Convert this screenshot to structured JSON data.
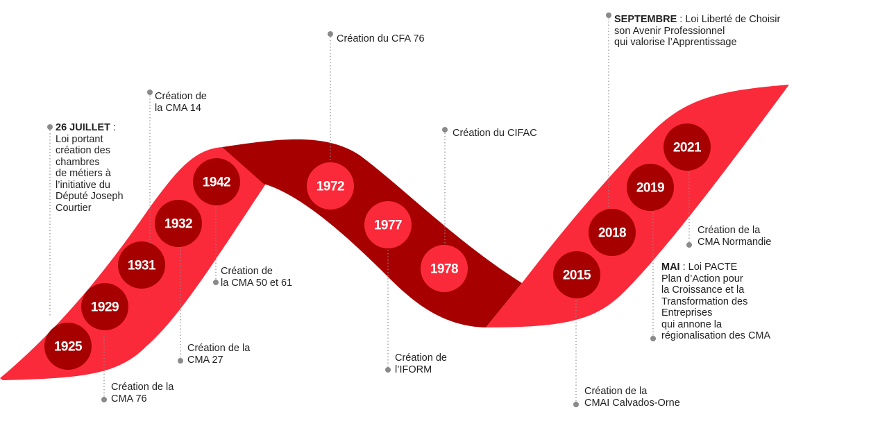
{
  "colors": {
    "band_light": "#fb2a3a",
    "band_dark": "#a60000",
    "circle_on_light": "#a60000",
    "circle_on_dark": "#fb2a3a",
    "connector": "#8a8a8a",
    "text": "#222222"
  },
  "milestones": [
    {
      "year": "1925",
      "bold": "",
      "text": "Création de la\nCMA 76"
    },
    {
      "year": "1929",
      "bold": "26 JUILLET",
      "text": " :\nLoi portant\ncréation des\nchambres\nde métiers à\nl’initiative du\nDéputé Joseph\nCourtier"
    },
    {
      "year": "1931",
      "bold": "",
      "text": "Création de\nla CMA 14"
    },
    {
      "year": "1932",
      "bold": "",
      "text": "Création de la\nCMA 27"
    },
    {
      "year": "1942",
      "bold": "",
      "text": "Création de\nla CMA 50 et 61"
    },
    {
      "year": "1972",
      "bold": "",
      "text": "Création du CFA 76"
    },
    {
      "year": "1977",
      "bold": "",
      "text": "Création de\nl’IFORM"
    },
    {
      "year": "1978",
      "bold": "",
      "text": "Création du CIFAC"
    },
    {
      "year": "2015",
      "bold": "",
      "text": "Création de la\nCMAI Calvados-Orne"
    },
    {
      "year": "2018",
      "bold": "SEPTEMBRE",
      "text": " : Loi Liberté de Choisir\nson Avenir Professionnel\nqui valorise l’Apprentissage"
    },
    {
      "year": "2019",
      "bold": "MAI",
      "text": " : Loi PACTE\nPlan d’Action pour\nla Croissance et la\nTransformation des\nEntreprises\nqui annone la\nrégionalisation des CMA"
    },
    {
      "year": "2021",
      "bold": "",
      "text": "Création de la\nCMA Normandie"
    }
  ]
}
